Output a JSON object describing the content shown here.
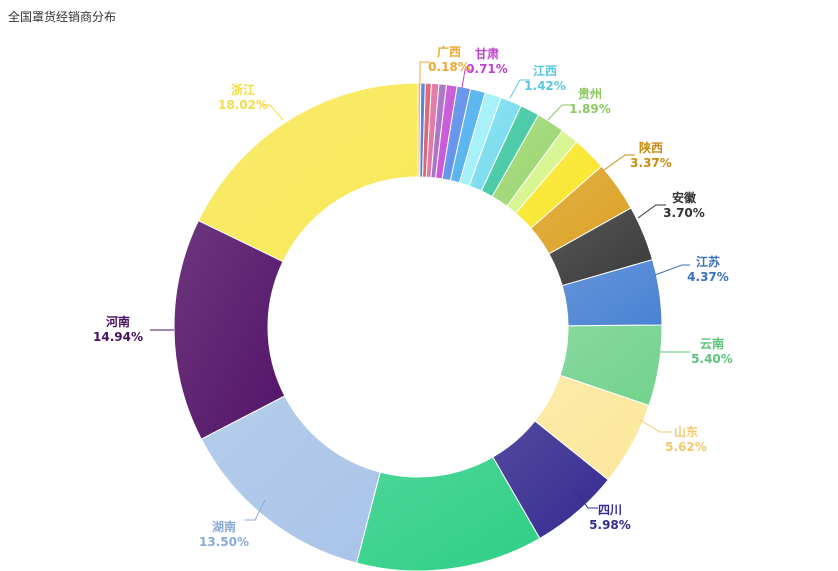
{
  "chart_data": {
    "type": "pie",
    "title": "全国罩货经销商分布",
    "donut": true,
    "legend": "none",
    "unlabeled_count": 11,
    "slices": [
      {
        "name": "浙江",
        "percent": 18.02,
        "color": "#f8e855",
        "label": "18.02%"
      },
      {
        "name": "河南",
        "percent": 14.94,
        "color": "#531368",
        "label": "14.94%"
      },
      {
        "name": "湖南",
        "percent": 13.5,
        "color": "#a9c4e8",
        "label": "13.50%"
      },
      {
        "name": "",
        "percent": 12.5,
        "color": "#2ecf86",
        "label": ""
      },
      {
        "name": "四川",
        "percent": 5.98,
        "color": "#352a8f",
        "label": "5.98%"
      },
      {
        "name": "山东",
        "percent": 5.62,
        "color": "#fce79a",
        "label": "5.62%"
      },
      {
        "name": "云南",
        "percent": 5.4,
        "color": "#72d28d",
        "label": "5.40%"
      },
      {
        "name": "江苏",
        "percent": 4.37,
        "color": "#4a82d3",
        "label": "4.37%"
      },
      {
        "name": "安徽",
        "percent": 3.7,
        "color": "#3a3a3a",
        "label": "3.70%"
      },
      {
        "name": "陕西",
        "percent": 3.37,
        "color": "#dca225",
        "label": "3.37%"
      },
      {
        "name": "",
        "percent": 2.3,
        "color": "#f9e62a",
        "label": ""
      },
      {
        "name": "",
        "percent": 1.2,
        "color": "#d4f58a",
        "label": ""
      },
      {
        "name": "贵州",
        "percent": 1.89,
        "color": "#9cd670",
        "label": "1.89%"
      },
      {
        "name": "",
        "percent": 1.3,
        "color": "#40c8a2",
        "label": ""
      },
      {
        "name": "江西",
        "percent": 1.42,
        "color": "#77dcef",
        "label": "1.42%"
      },
      {
        "name": "",
        "percent": 1.1,
        "color": "#a0f0f8",
        "label": ""
      },
      {
        "name": "",
        "percent": 1.0,
        "color": "#4fb0ee",
        "label": ""
      },
      {
        "name": "",
        "percent": 0.9,
        "color": "#5d8eea",
        "label": ""
      },
      {
        "name": "甘肃",
        "percent": 0.71,
        "color": "#c64fd6",
        "label": "0.71%"
      },
      {
        "name": "",
        "percent": 0.5,
        "color": "#a46cc0",
        "label": ""
      },
      {
        "name": "",
        "percent": 0.5,
        "color": "#e070a0",
        "label": ""
      },
      {
        "name": "",
        "percent": 0.4,
        "color": "#dc5b6a",
        "label": ""
      },
      {
        "name": "",
        "percent": 0.3,
        "color": "#4a78d8",
        "label": ""
      },
      {
        "name": "广西",
        "percent": 0.18,
        "color": "#f0b24a",
        "label": "0.18%"
      }
    ],
    "label_colors": {
      "浙江": "#f0dc4a",
      "河南": "#4a1060",
      "湖南": "#8aaad8",
      "四川": "#352a8f",
      "山东": "#f0c870",
      "云南": "#5cc47a",
      "江苏": "#3a70c0",
      "安徽": "#333333",
      "陕西": "#c98e10",
      "贵州": "#8cc860",
      "江西": "#5ac8e0",
      "甘肃": "#c040d0",
      "广西": "#f0a830"
    }
  }
}
